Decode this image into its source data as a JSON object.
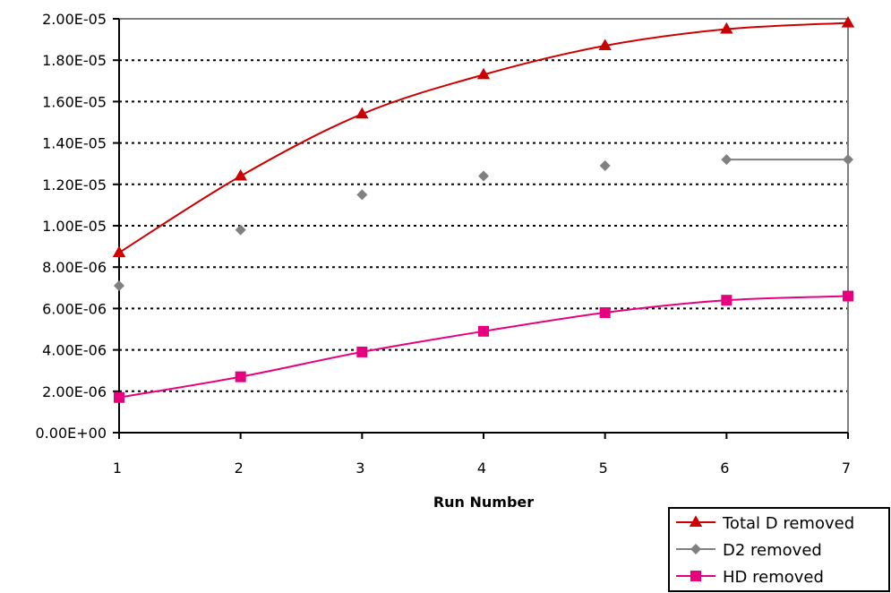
{
  "chart_data": {
    "type": "line",
    "title": "",
    "xlabel": "Run Number",
    "ylabel": "",
    "x": [
      1,
      2,
      3,
      4,
      5,
      6,
      7
    ],
    "x_tick_labels": [
      "1",
      "2",
      "3",
      "4",
      "5",
      "6",
      "7"
    ],
    "y_tick_labels": [
      "0.00E+00",
      "2.00E-06",
      "4.00E-06",
      "6.00E-06",
      "8.00E-06",
      "1.00E-05",
      "1.20E-05",
      "1.40E-05",
      "1.60E-05",
      "1.80E-05",
      "2.00E-05"
    ],
    "ylim": [
      0,
      2e-05
    ],
    "grid": true,
    "legend_position": "bottom-right",
    "series": [
      {
        "name": "Total D removed",
        "color": "#cc0000",
        "marker": "triangle",
        "values": [
          8.7e-06,
          1.24e-05,
          1.54e-05,
          1.73e-05,
          1.87e-05,
          1.95e-05,
          1.98e-05
        ]
      },
      {
        "name": "D2 removed",
        "color": "#808080",
        "marker": "diamond",
        "values": [
          7.1e-06,
          9.8e-06,
          1.15e-05,
          1.24e-05,
          1.29e-05,
          1.32e-05,
          1.32e-05
        ]
      },
      {
        "name": "HD removed",
        "color": "#e6007e",
        "marker": "square",
        "values": [
          1.7e-06,
          2.7e-06,
          3.9e-06,
          4.9e-06,
          5.8e-06,
          6.4e-06,
          6.6e-06
        ]
      }
    ]
  }
}
